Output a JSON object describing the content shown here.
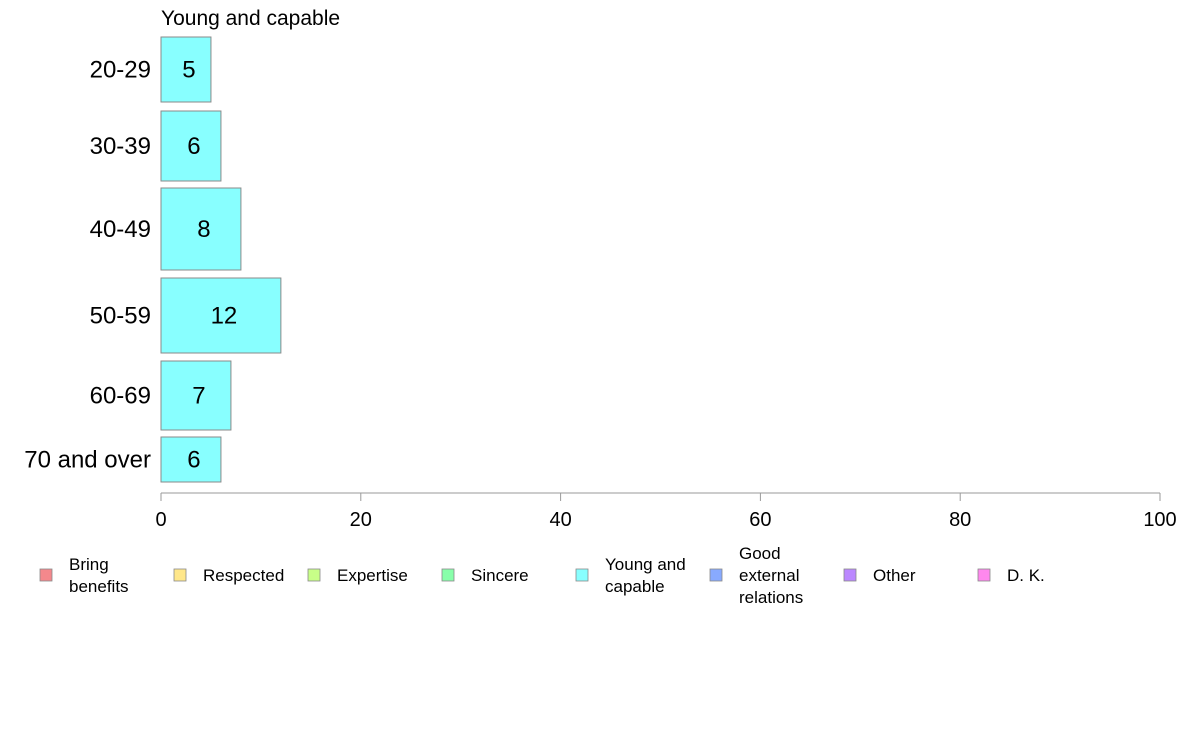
{
  "chart_data": {
    "type": "bar",
    "orientation": "horizontal",
    "title": "Young and capable",
    "categories": [
      "20-29",
      "30-39",
      "40-49",
      "50-59",
      "60-69",
      "70 and over"
    ],
    "series": [
      {
        "name": "Young and capable",
        "values": [
          5,
          6,
          8,
          12,
          7,
          6
        ],
        "color": "#88ffff"
      }
    ],
    "xlim": [
      0,
      100
    ],
    "xticks": [
      "0",
      "20",
      "40",
      "60",
      "80",
      "100"
    ],
    "xlabel": "",
    "ylabel": "",
    "grid": false,
    "legend_position": "bottom",
    "legend": [
      {
        "lines": [
          "Bring",
          "benefits"
        ],
        "color": "#f4888c"
      },
      {
        "lines": [
          "Respected"
        ],
        "color": "#ffe78a"
      },
      {
        "lines": [
          "Expertise"
        ],
        "color": "#c8ff88"
      },
      {
        "lines": [
          "Sincere"
        ],
        "color": "#88ffaa"
      },
      {
        "lines": [
          "Young and",
          "capable"
        ],
        "color": "#88ffff"
      },
      {
        "lines": [
          "Good",
          "external",
          "relations"
        ],
        "color": "#88aaff"
      },
      {
        "lines": [
          "Other"
        ],
        "color": "#bb88ff"
      },
      {
        "lines": [
          "D. K."
        ],
        "color": "#ff88ee"
      }
    ]
  }
}
